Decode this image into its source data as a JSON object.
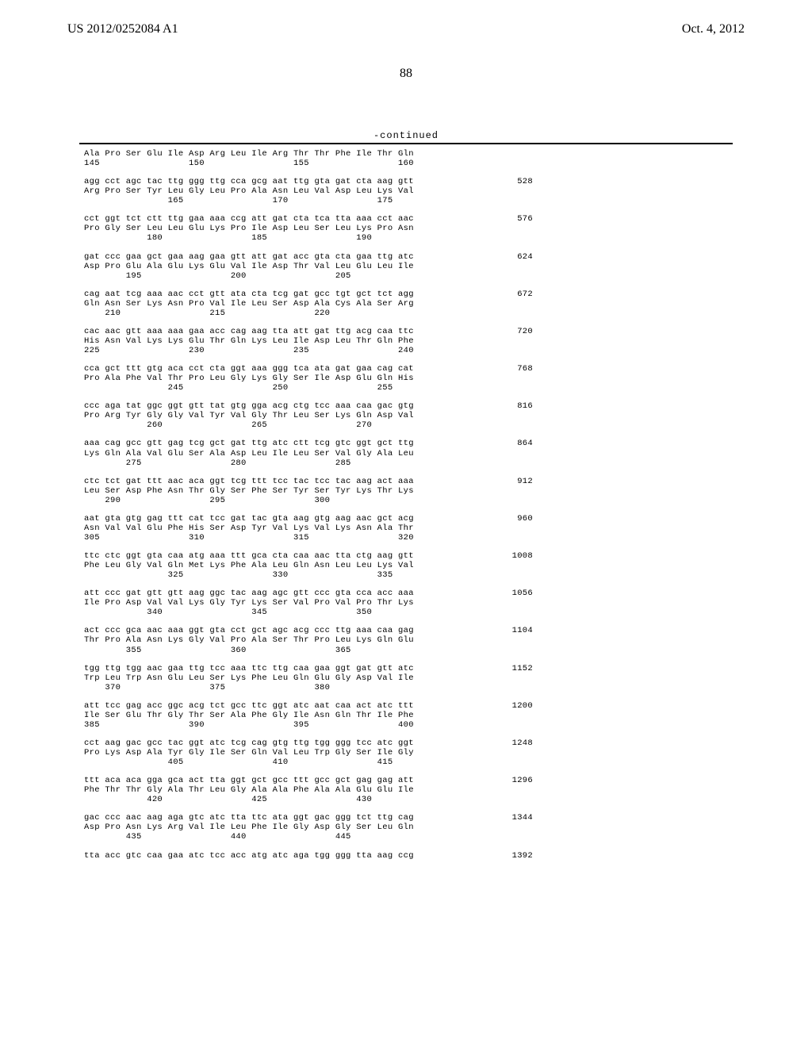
{
  "header": {
    "publication_number": "US 2012/0252084 A1",
    "publication_date": "Oct. 4, 2012"
  },
  "page_number": "88",
  "continued_label": "-continued",
  "sequence_groups": [
    {
      "lines": [
        "Ala Pro Ser Glu Ile Asp Arg Leu Ile Arg Thr Thr Phe Ile Thr Gln",
        "145                 150                 155                 160"
      ],
      "number": ""
    },
    {
      "lines": [
        "agg cct agc tac ttg ggg ttg cca gcg aat ttg gta gat cta aag gtt",
        "Arg Pro Ser Tyr Leu Gly Leu Pro Ala Asn Leu Val Asp Leu Lys Val",
        "                165                 170                 175"
      ],
      "number": "528"
    },
    {
      "lines": [
        "cct ggt tct ctt ttg gaa aaa ccg att gat cta tca tta aaa cct aac",
        "Pro Gly Ser Leu Leu Glu Lys Pro Ile Asp Leu Ser Leu Lys Pro Asn",
        "            180                 185                 190"
      ],
      "number": "576"
    },
    {
      "lines": [
        "gat ccc gaa gct gaa aag gaa gtt att gat acc gta cta gaa ttg atc",
        "Asp Pro Glu Ala Glu Lys Glu Val Ile Asp Thr Val Leu Glu Leu Ile",
        "        195                 200                 205"
      ],
      "number": "624"
    },
    {
      "lines": [
        "cag aat tcg aaa aac cct gtt ata cta tcg gat gcc tgt gct tct agg",
        "Gln Asn Ser Lys Asn Pro Val Ile Leu Ser Asp Ala Cys Ala Ser Arg",
        "    210                 215                 220"
      ],
      "number": "672"
    },
    {
      "lines": [
        "cac aac gtt aaa aaa gaa acc cag aag tta att gat ttg acg caa ttc",
        "His Asn Val Lys Lys Glu Thr Gln Lys Leu Ile Asp Leu Thr Gln Phe",
        "225                 230                 235                 240"
      ],
      "number": "720"
    },
    {
      "lines": [
        "cca gct ttt gtg aca cct cta ggt aaa ggg tca ata gat gaa cag cat",
        "Pro Ala Phe Val Thr Pro Leu Gly Lys Gly Ser Ile Asp Glu Gln His",
        "                245                 250                 255"
      ],
      "number": "768"
    },
    {
      "lines": [
        "ccc aga tat ggc ggt gtt tat gtg gga acg ctg tcc aaa caa gac gtg",
        "Pro Arg Tyr Gly Gly Val Tyr Val Gly Thr Leu Ser Lys Gln Asp Val",
        "            260                 265                 270"
      ],
      "number": "816"
    },
    {
      "lines": [
        "aaa cag gcc gtt gag tcg gct gat ttg atc ctt tcg gtc ggt gct ttg",
        "Lys Gln Ala Val Glu Ser Ala Asp Leu Ile Leu Ser Val Gly Ala Leu",
        "        275                 280                 285"
      ],
      "number": "864"
    },
    {
      "lines": [
        "ctc tct gat ttt aac aca ggt tcg ttt tcc tac tcc tac aag act aaa",
        "Leu Ser Asp Phe Asn Thr Gly Ser Phe Ser Tyr Ser Tyr Lys Thr Lys",
        "    290                 295                 300"
      ],
      "number": "912"
    },
    {
      "lines": [
        "aat gta gtg gag ttt cat tcc gat tac gta aag gtg aag aac gct acg",
        "Asn Val Val Glu Phe His Ser Asp Tyr Val Lys Val Lys Asn Ala Thr",
        "305                 310                 315                 320"
      ],
      "number": "960"
    },
    {
      "lines": [
        "ttc ctc ggt gta caa atg aaa ttt gca cta caa aac tta ctg aag gtt",
        "Phe Leu Gly Val Gln Met Lys Phe Ala Leu Gln Asn Leu Leu Lys Val",
        "                325                 330                 335"
      ],
      "number": "1008"
    },
    {
      "lines": [
        "att ccc gat gtt gtt aag ggc tac aag agc gtt ccc gta cca acc aaa",
        "Ile Pro Asp Val Val Lys Gly Tyr Lys Ser Val Pro Val Pro Thr Lys",
        "            340                 345                 350"
      ],
      "number": "1056"
    },
    {
      "lines": [
        "act ccc gca aac aaa ggt gta cct gct agc acg ccc ttg aaa caa gag",
        "Thr Pro Ala Asn Lys Gly Val Pro Ala Ser Thr Pro Leu Lys Gln Glu",
        "        355                 360                 365"
      ],
      "number": "1104"
    },
    {
      "lines": [
        "tgg ttg tgg aac gaa ttg tcc aaa ttc ttg caa gaa ggt gat gtt atc",
        "Trp Leu Trp Asn Glu Leu Ser Lys Phe Leu Gln Glu Gly Asp Val Ile",
        "    370                 375                 380"
      ],
      "number": "1152"
    },
    {
      "lines": [
        "att tcc gag acc ggc acg tct gcc ttc ggt atc aat caa act atc ttt",
        "Ile Ser Glu Thr Gly Thr Ser Ala Phe Gly Ile Asn Gln Thr Ile Phe",
        "385                 390                 395                 400"
      ],
      "number": "1200"
    },
    {
      "lines": [
        "cct aag gac gcc tac ggt atc tcg cag gtg ttg tgg ggg tcc atc ggt",
        "Pro Lys Asp Ala Tyr Gly Ile Ser Gln Val Leu Trp Gly Ser Ile Gly",
        "                405                 410                 415"
      ],
      "number": "1248"
    },
    {
      "lines": [
        "ttt aca aca gga gca act tta ggt gct gcc ttt gcc gct gag gag att",
        "Phe Thr Thr Gly Ala Thr Leu Gly Ala Ala Phe Ala Ala Glu Glu Ile",
        "            420                 425                 430"
      ],
      "number": "1296"
    },
    {
      "lines": [
        "gac ccc aac aag aga gtc atc tta ttc ata ggt gac ggg tct ttg cag",
        "Asp Pro Asn Lys Arg Val Ile Leu Phe Ile Gly Asp Gly Ser Leu Gln",
        "        435                 440                 445"
      ],
      "number": "1344"
    },
    {
      "lines": [
        "tta acc gtc caa gaa atc tcc acc atg atc aga tgg ggg tta aag ccg"
      ],
      "number": "1392"
    }
  ]
}
